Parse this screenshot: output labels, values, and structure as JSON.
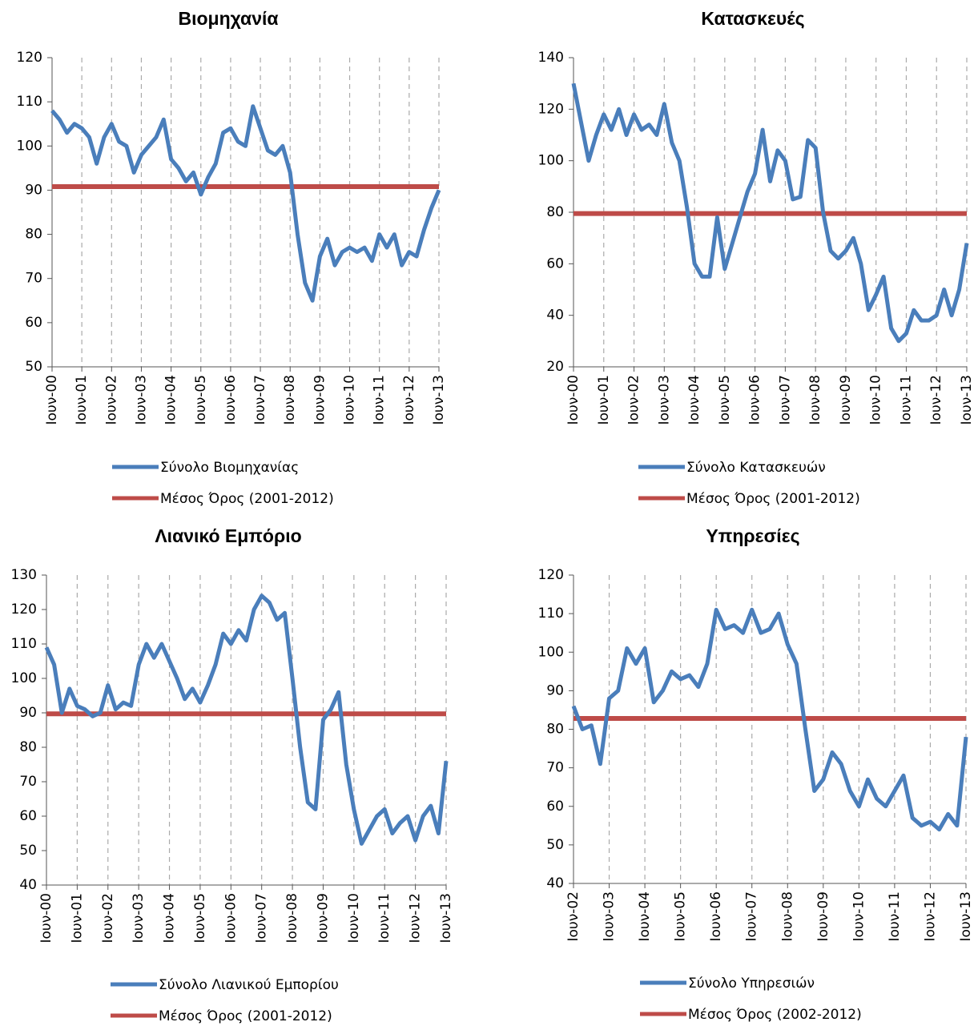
{
  "chart_data": [
    {
      "type": "line",
      "title": "Βιομηχανία",
      "categories": [
        "Ιουν-00",
        null,
        null,
        null,
        "Ιουν-01",
        null,
        null,
        null,
        "Ιουν-02",
        null,
        null,
        null,
        "Ιουν-03",
        null,
        null,
        null,
        "Ιουν-04",
        null,
        null,
        null,
        "Ιουν-05",
        null,
        null,
        null,
        "Ιουν-06",
        null,
        null,
        null,
        "Ιουν-07",
        null,
        null,
        null,
        "Ιουν-08",
        null,
        null,
        null,
        "Ιουν-09",
        null,
        null,
        null,
        "Ιουν-10",
        null,
        null,
        null,
        "Ιουν-11",
        null,
        null,
        null,
        "Ιουν-12",
        null,
        null,
        null,
        "Ιουν-13"
      ],
      "series": [
        {
          "name": "Σύνολο Βιομηχανίας",
          "color": "#4a7ebb",
          "values": [
            108,
            106,
            103,
            105,
            104,
            102,
            96,
            102,
            105,
            101,
            100,
            94,
            98,
            100,
            102,
            106,
            97,
            95,
            92,
            94,
            89,
            93,
            96,
            103,
            104,
            101,
            100,
            109,
            104,
            99,
            98,
            100,
            94,
            80,
            69,
            65,
            75,
            79,
            73,
            76,
            77,
            76,
            77,
            74,
            80,
            77,
            80,
            73,
            76,
            75,
            81,
            86,
            90
          ]
        },
        {
          "name": "Μέσος Όρος (2001-2012)",
          "color": "#be4b48",
          "values": [
            90.8,
            90.8,
            90.8,
            90.8,
            90.8,
            90.8,
            90.8,
            90.8,
            90.8,
            90.8,
            90.8,
            90.8,
            90.8,
            90.8,
            90.8,
            90.8,
            90.8,
            90.8,
            90.8,
            90.8,
            90.8,
            90.8,
            90.8,
            90.8,
            90.8,
            90.8,
            90.8,
            90.8,
            90.8,
            90.8,
            90.8,
            90.8,
            90.8,
            90.8,
            90.8,
            90.8,
            90.8,
            90.8,
            90.8,
            90.8,
            90.8,
            90.8,
            90.8,
            90.8,
            90.8,
            90.8,
            90.8,
            90.8,
            90.8,
            90.8,
            90.8,
            90.8,
            90.8
          ]
        }
      ],
      "ylim": [
        50,
        120
      ],
      "yticks": [
        50,
        60,
        70,
        80,
        90,
        100,
        110,
        120
      ],
      "grid": "x",
      "legend": "bottom"
    },
    {
      "type": "line",
      "title": "Κατασκευές",
      "categories": [
        "Ιουν-00",
        null,
        null,
        null,
        "Ιουν-01",
        null,
        null,
        null,
        "Ιουν-02",
        null,
        null,
        null,
        "Ιουν-03",
        null,
        null,
        null,
        "Ιουν-04",
        null,
        null,
        null,
        "Ιουν-05",
        null,
        null,
        null,
        "Ιουν-06",
        null,
        null,
        null,
        "Ιουν-07",
        null,
        null,
        null,
        "Ιουν-08",
        null,
        null,
        null,
        "Ιουν-09",
        null,
        null,
        null,
        "Ιουν-10",
        null,
        null,
        null,
        "Ιουν-11",
        null,
        null,
        null,
        "Ιουν-12",
        null,
        null,
        null,
        "Ιουν-13"
      ],
      "series": [
        {
          "name": "Σύνολο Κατασκευών",
          "color": "#4a7ebb",
          "values": [
            130,
            115,
            100,
            110,
            118,
            112,
            120,
            110,
            118,
            112,
            114,
            110,
            122,
            107,
            100,
            82,
            60,
            55,
            55,
            78,
            58,
            68,
            78,
            88,
            95,
            112,
            92,
            104,
            100,
            85,
            86,
            108,
            105,
            80,
            65,
            62,
            65,
            70,
            60,
            42,
            48,
            55,
            35,
            30,
            33,
            42,
            38,
            38,
            40,
            50,
            40,
            50,
            68
          ]
        },
        {
          "name": "Μέσος Όρος (2001-2012)",
          "color": "#be4b48",
          "values": [
            79.5,
            79.5,
            79.5,
            79.5,
            79.5,
            79.5,
            79.5,
            79.5,
            79.5,
            79.5,
            79.5,
            79.5,
            79.5,
            79.5,
            79.5,
            79.5,
            79.5,
            79.5,
            79.5,
            79.5,
            79.5,
            79.5,
            79.5,
            79.5,
            79.5,
            79.5,
            79.5,
            79.5,
            79.5,
            79.5,
            79.5,
            79.5,
            79.5,
            79.5,
            79.5,
            79.5,
            79.5,
            79.5,
            79.5,
            79.5,
            79.5,
            79.5,
            79.5,
            79.5,
            79.5,
            79.5,
            79.5,
            79.5,
            79.5,
            79.5,
            79.5,
            79.5,
            79.5
          ]
        }
      ],
      "ylim": [
        20,
        140
      ],
      "yticks": [
        20,
        40,
        60,
        80,
        100,
        120,
        140
      ],
      "grid": "x",
      "legend": "bottom"
    },
    {
      "type": "line",
      "title": "Λιανικό Εμπόριο",
      "categories": [
        "Ιουν-00",
        null,
        null,
        null,
        "Ιουν-01",
        null,
        null,
        null,
        "Ιουν-02",
        null,
        null,
        null,
        "Ιουν-03",
        null,
        null,
        null,
        "Ιουν-04",
        null,
        null,
        null,
        "Ιουν-05",
        null,
        null,
        null,
        "Ιουν-06",
        null,
        null,
        null,
        "Ιουν-07",
        null,
        null,
        null,
        "Ιουν-08",
        null,
        null,
        null,
        "Ιουν-09",
        null,
        null,
        null,
        "Ιουν-10",
        null,
        null,
        null,
        "Ιουν-11",
        null,
        null,
        null,
        "Ιουν-12",
        null,
        null,
        null,
        "Ιουν-13"
      ],
      "series": [
        {
          "name": "Σύνολο Λιανικού Εμπορίου",
          "color": "#4a7ebb",
          "values": [
            109,
            104,
            90,
            97,
            92,
            91,
            89,
            90,
            98,
            91,
            93,
            92,
            104,
            110,
            106,
            110,
            105,
            100,
            94,
            97,
            93,
            98,
            104,
            113,
            110,
            114,
            111,
            120,
            124,
            122,
            117,
            119,
            100,
            80,
            64,
            62,
            88,
            91,
            96,
            75,
            62,
            52,
            56,
            60,
            62,
            55,
            58,
            60,
            53,
            60,
            63,
            55,
            76
          ]
        },
        {
          "name": "Μέσος Όρος (2001-2012)",
          "color": "#be4b48",
          "values": [
            89.7,
            89.7,
            89.7,
            89.7,
            89.7,
            89.7,
            89.7,
            89.7,
            89.7,
            89.7,
            89.7,
            89.7,
            89.7,
            89.7,
            89.7,
            89.7,
            89.7,
            89.7,
            89.7,
            89.7,
            89.7,
            89.7,
            89.7,
            89.7,
            89.7,
            89.7,
            89.7,
            89.7,
            89.7,
            89.7,
            89.7,
            89.7,
            89.7,
            89.7,
            89.7,
            89.7,
            89.7,
            89.7,
            89.7,
            89.7,
            89.7,
            89.7,
            89.7,
            89.7,
            89.7,
            89.7,
            89.7,
            89.7,
            89.7,
            89.7,
            89.7,
            89.7,
            89.7
          ]
        }
      ],
      "ylim": [
        40,
        130
      ],
      "yticks": [
        40,
        50,
        60,
        70,
        80,
        90,
        100,
        110,
        120,
        130
      ],
      "grid": "x",
      "legend": "bottom"
    },
    {
      "type": "line",
      "title": "Υπηρεσίες",
      "categories": [
        "Ιουν-02",
        null,
        null,
        null,
        "Ιουν-03",
        null,
        null,
        null,
        "Ιουν-04",
        null,
        null,
        null,
        "Ιουν-05",
        null,
        null,
        null,
        "Ιουν-06",
        null,
        null,
        null,
        "Ιουν-07",
        null,
        null,
        null,
        "Ιουν-08",
        null,
        null,
        null,
        "Ιουν-09",
        null,
        null,
        null,
        "Ιουν-10",
        null,
        null,
        null,
        "Ιουν-11",
        null,
        null,
        null,
        "Ιουν-12",
        null,
        null,
        null,
        "Ιουν-13"
      ],
      "series": [
        {
          "name": "Σύνολο Υπηρεσιών",
          "color": "#4a7ebb",
          "values": [
            86,
            80,
            81,
            71,
            88,
            90,
            101,
            97,
            101,
            87,
            90,
            95,
            93,
            94,
            91,
            97,
            111,
            106,
            107,
            105,
            111,
            105,
            106,
            110,
            102,
            97,
            80,
            64,
            67,
            74,
            71,
            64,
            60,
            67,
            62,
            60,
            64,
            68,
            57,
            55,
            56,
            54,
            58,
            55,
            78
          ]
        },
        {
          "name": "Μέσος Όρος (2002-2012)",
          "color": "#be4b48",
          "values": [
            82.8,
            82.8,
            82.8,
            82.8,
            82.8,
            82.8,
            82.8,
            82.8,
            82.8,
            82.8,
            82.8,
            82.8,
            82.8,
            82.8,
            82.8,
            82.8,
            82.8,
            82.8,
            82.8,
            82.8,
            82.8,
            82.8,
            82.8,
            82.8,
            82.8,
            82.8,
            82.8,
            82.8,
            82.8,
            82.8,
            82.8,
            82.8,
            82.8,
            82.8,
            82.8,
            82.8,
            82.8,
            82.8,
            82.8,
            82.8,
            82.8,
            82.8,
            82.8,
            82.8,
            82.8
          ]
        }
      ],
      "ylim": [
        40,
        120
      ],
      "yticks": [
        40,
        50,
        60,
        70,
        80,
        90,
        100,
        110,
        120
      ],
      "grid": "x",
      "legend": "bottom"
    }
  ]
}
